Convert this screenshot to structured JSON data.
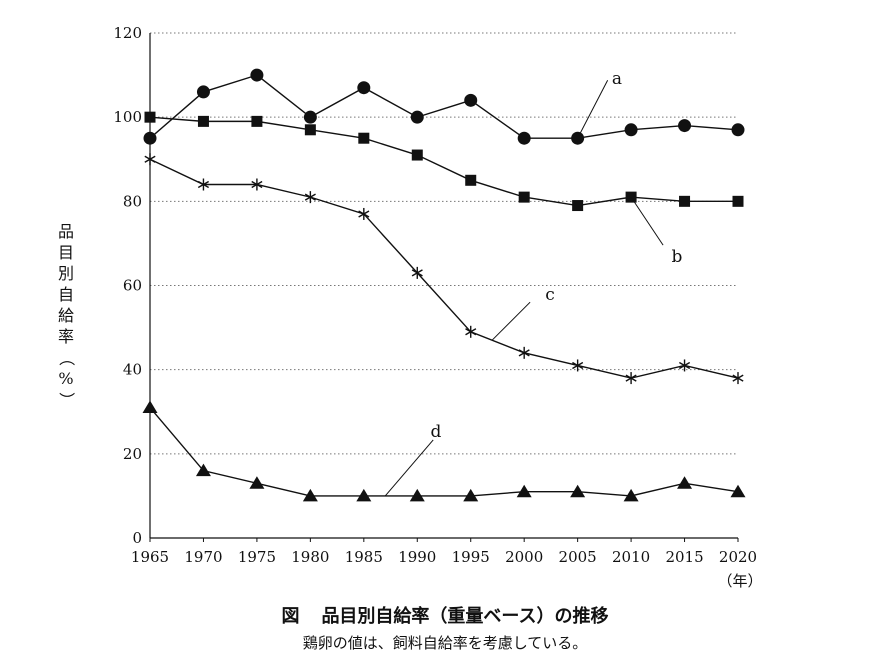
{
  "figure": {
    "label": "図",
    "title": "品目別自給率（重量ベース）の推移",
    "note": "鶏卵の値は、飼料自給率を考慮している。"
  },
  "chart_data": {
    "type": "line",
    "ylabel": "品目別自給率（%）",
    "xlabel": "",
    "x_unit": "（年）",
    "ylim": [
      0,
      120
    ],
    "y_ticks": [
      0,
      20,
      40,
      60,
      80,
      100,
      120
    ],
    "x": [
      1965,
      1970,
      1975,
      1980,
      1985,
      1990,
      1995,
      2000,
      2005,
      2010,
      2015,
      2020
    ],
    "grid": "horizontal dotted",
    "series": [
      {
        "label": "a",
        "marker": "circle",
        "values": [
          95,
          106,
          110,
          100,
          107,
          100,
          104,
          95,
          95,
          97,
          98,
          97
        ]
      },
      {
        "label": "b",
        "marker": "square",
        "values": [
          100,
          99,
          99,
          97,
          95,
          91,
          85,
          81,
          79,
          81,
          80,
          80
        ]
      },
      {
        "label": "c",
        "marker": "asterisk",
        "values": [
          90,
          84,
          84,
          81,
          77,
          63,
          49,
          44,
          41,
          38,
          41,
          38
        ]
      },
      {
        "label": "d",
        "marker": "triangle",
        "values": [
          31,
          16,
          13,
          10,
          10,
          10,
          10,
          11,
          11,
          10,
          13,
          11
        ]
      }
    ]
  }
}
